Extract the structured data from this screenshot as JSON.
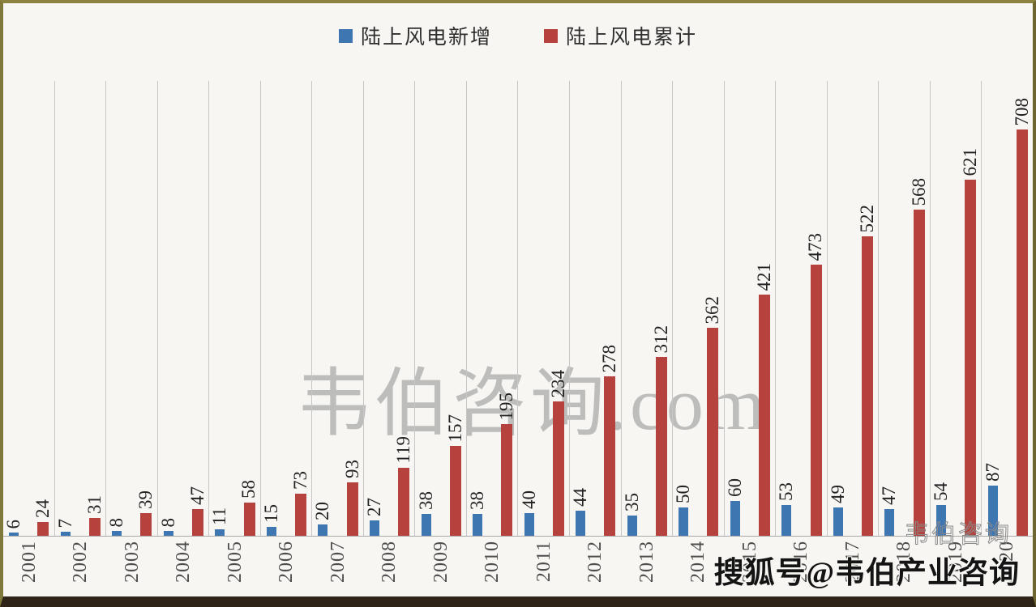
{
  "legend": {
    "items": [
      {
        "label": "陆上风电新增",
        "color": "#3e76b2"
      },
      {
        "label": "陆上风电累计",
        "color": "#b5423d"
      }
    ]
  },
  "watermarks": {
    "center": "韦伯咨询.com",
    "corner_faint": "韦伯咨询",
    "corner_bold": "搜狐号@韦伯产业咨询"
  },
  "chart_data": {
    "type": "bar",
    "categories": [
      "2001",
      "2002",
      "2003",
      "2004",
      "2005",
      "2006",
      "2007",
      "2008",
      "2009",
      "2010",
      "2011",
      "2012",
      "2013",
      "2014",
      "2015",
      "2016",
      "2017",
      "2018",
      "2019",
      "2020"
    ],
    "series": [
      {
        "name": "陆上风电新增",
        "color": "#3e76b2",
        "values": [
          6,
          7,
          8,
          8,
          11,
          15,
          20,
          27,
          38,
          38,
          40,
          44,
          35,
          50,
          60,
          53,
          49,
          47,
          54,
          87
        ]
      },
      {
        "name": "陆上风电累计",
        "color": "#b5423d",
        "values": [
          24,
          31,
          39,
          47,
          58,
          73,
          93,
          119,
          157,
          195,
          234,
          278,
          312,
          362,
          421,
          473,
          522,
          568,
          621,
          708
        ]
      }
    ],
    "title": "",
    "xlabel": "",
    "ylabel": "",
    "ylim": [
      0,
      793
    ],
    "grid": "vertical-category-separators",
    "legend_position": "top-center",
    "data_labels": "rotated-90-above-bars",
    "x_tick_rotation": -90
  }
}
